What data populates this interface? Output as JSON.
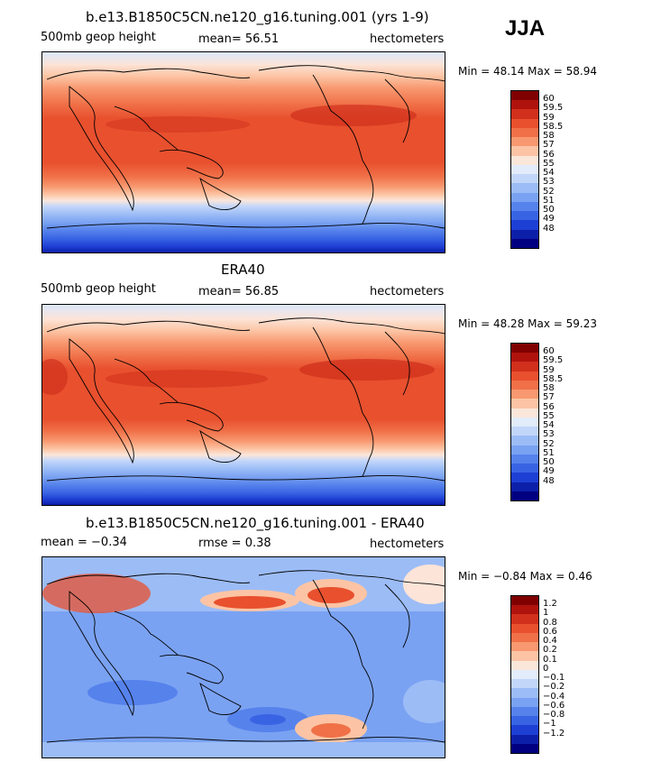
{
  "season": "JJA",
  "panels": [
    {
      "title": "b.e13.B1850C5CN.ne120_g16.tuning.001 (yrs 1-9)",
      "left_text": "500mb geop height",
      "center_text": "mean=  56.51",
      "right_text": "hectometers",
      "minmax": "Min =  48.14 Max =  58.94",
      "colorbar_labels": [
        "60",
        "59.5",
        "59",
        "58.5",
        "58",
        "57",
        "56",
        "55",
        "54",
        "53",
        "52",
        "51",
        "50",
        "49",
        "48"
      ],
      "colors": [
        "#800000",
        "#b0120c",
        "#d0301c",
        "#e8502e",
        "#f07048",
        "#f89870",
        "#fcc4a4",
        "#fbe6da",
        "#e2ecfb",
        "#c2d6fa",
        "#9cbcf6",
        "#7aa2f2",
        "#5682ec",
        "#3864e4",
        "#1e3fd4",
        "#0c1fa8",
        "#000080"
      ]
    },
    {
      "title": "ERA40",
      "left_text": "500mb geop height",
      "center_text": "mean=  56.85",
      "right_text": "hectometers",
      "minmax": "Min =  48.28 Max =  59.23",
      "colorbar_labels": [
        "60",
        "59.5",
        "59",
        "58.5",
        "58",
        "57",
        "56",
        "55",
        "54",
        "53",
        "52",
        "51",
        "50",
        "49",
        "48"
      ],
      "colors": [
        "#800000",
        "#b0120c",
        "#d0301c",
        "#e8502e",
        "#f07048",
        "#f89870",
        "#fcc4a4",
        "#fbe6da",
        "#e2ecfb",
        "#c2d6fa",
        "#9cbcf6",
        "#7aa2f2",
        "#5682ec",
        "#3864e4",
        "#1e3fd4",
        "#0c1fa8",
        "#000080"
      ]
    },
    {
      "title": "b.e13.B1850C5CN.ne120_g16.tuning.001 - ERA40",
      "left_text": "mean =  −0.34",
      "center_text": "rmse =   0.38",
      "right_text": "hectometers",
      "minmax": "Min =  −0.84 Max =   0.46",
      "colorbar_labels": [
        "1.2",
        "1",
        "0.8",
        "0.6",
        "0.4",
        "0.2",
        "0.1",
        "0",
        "−0.1",
        "−0.2",
        "−0.4",
        "−0.6",
        "−0.8",
        "−1",
        "−1.2"
      ],
      "colors": [
        "#800000",
        "#b0120c",
        "#d0301c",
        "#e8502e",
        "#f07048",
        "#f89870",
        "#fcc4a4",
        "#fbe6da",
        "#e2ecfb",
        "#c2d6fa",
        "#9cbcf6",
        "#7aa2f2",
        "#5682ec",
        "#3864e4",
        "#1e3fd4",
        "#0c1fa8",
        "#000080"
      ]
    }
  ]
}
